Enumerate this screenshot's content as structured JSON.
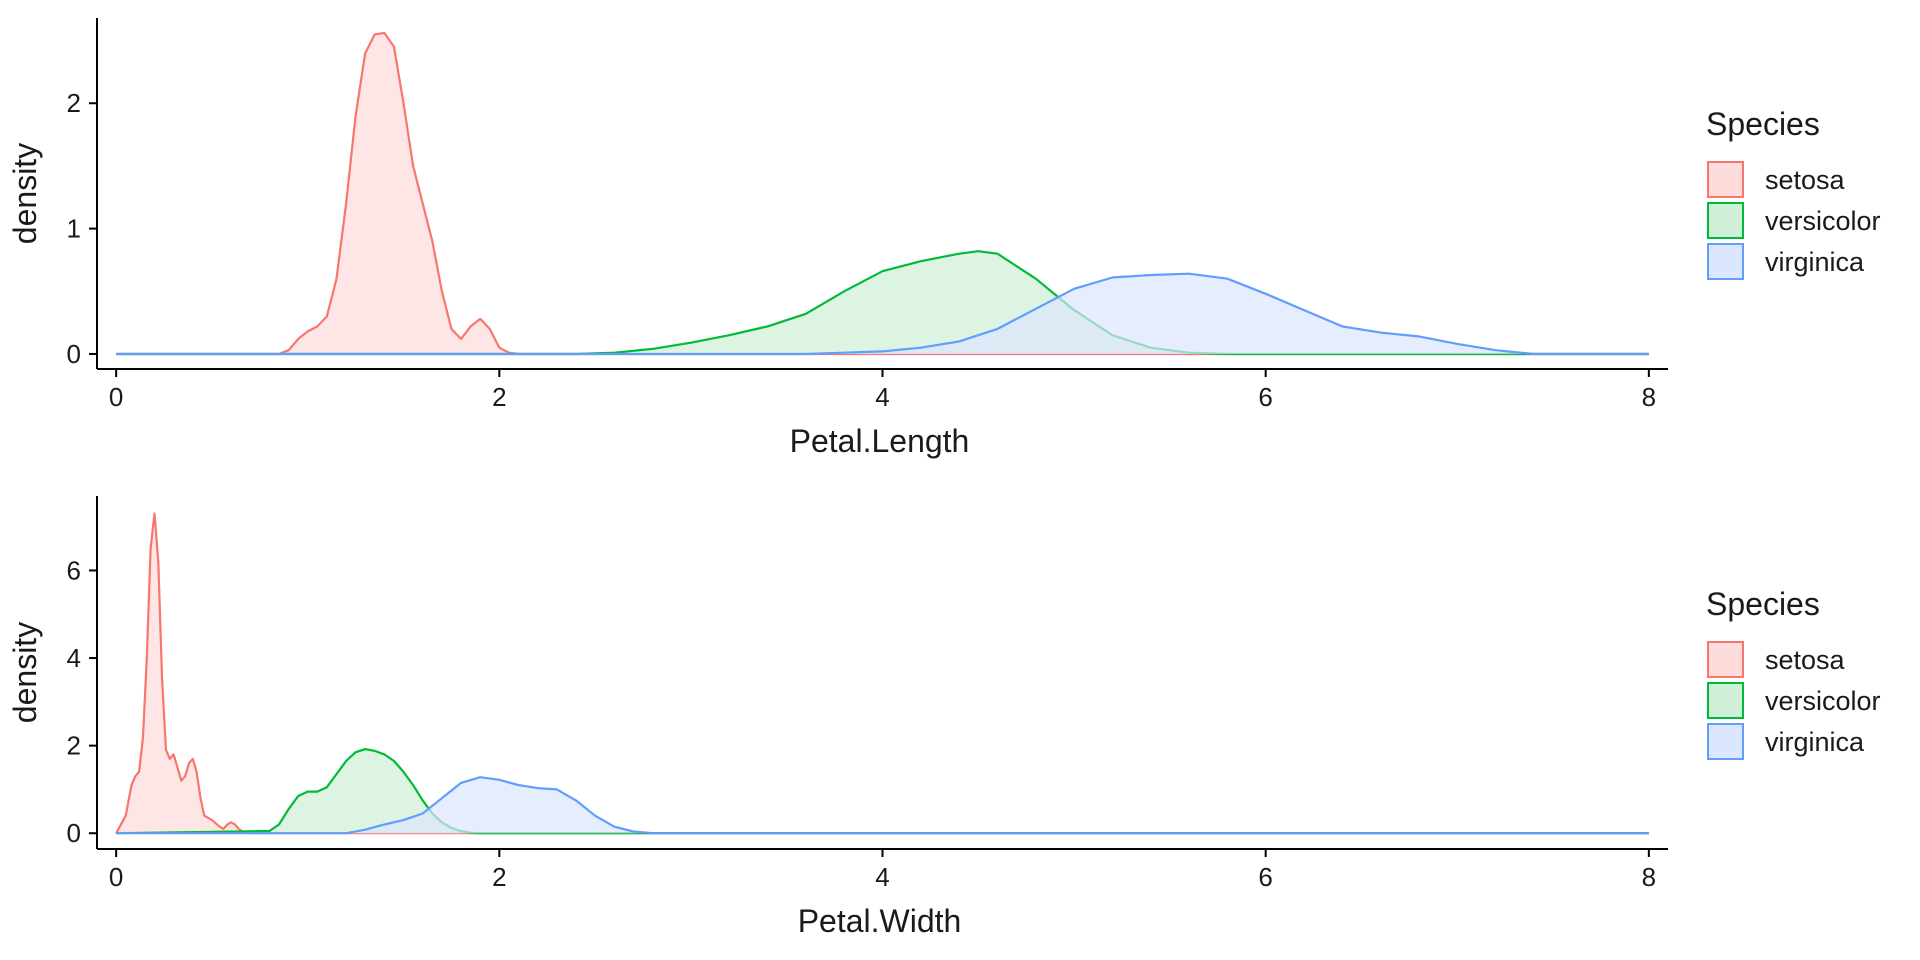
{
  "chart_data": [
    {
      "type": "area",
      "xlabel": "Petal.Length",
      "ylabel": "density",
      "xlim": [
        -0.1,
        8.1
      ],
      "ylim": [
        -0.12,
        2.68
      ],
      "xticks": [
        0,
        2,
        4,
        6,
        8
      ],
      "yticks": [
        0,
        1,
        2
      ],
      "grid": false,
      "legend": {
        "title": "Species",
        "position": "right"
      },
      "series": [
        {
          "name": "setosa",
          "color": "#F8766D",
          "fill": "#FDDCDB",
          "x": [
            0,
            0.85,
            0.9,
            0.95,
            1.0,
            1.05,
            1.1,
            1.15,
            1.2,
            1.25,
            1.3,
            1.35,
            1.4,
            1.45,
            1.5,
            1.55,
            1.6,
            1.65,
            1.7,
            1.75,
            1.8,
            1.85,
            1.9,
            1.95,
            2.0,
            2.05,
            2.1,
            8
          ],
          "y": [
            0,
            0,
            0.03,
            0.12,
            0.18,
            0.22,
            0.3,
            0.6,
            1.2,
            1.9,
            2.4,
            2.55,
            2.56,
            2.45,
            2.0,
            1.5,
            1.2,
            0.9,
            0.5,
            0.2,
            0.12,
            0.22,
            0.28,
            0.2,
            0.05,
            0.01,
            0,
            0
          ]
        },
        {
          "name": "versicolor",
          "color": "#00BA38",
          "fill": "#CFEFD6",
          "x": [
            0,
            2.4,
            2.6,
            2.8,
            3.0,
            3.2,
            3.4,
            3.6,
            3.8,
            4.0,
            4.2,
            4.4,
            4.5,
            4.6,
            4.8,
            5.0,
            5.2,
            5.4,
            5.6,
            5.8,
            6.0,
            8
          ],
          "y": [
            0,
            0,
            0.01,
            0.04,
            0.09,
            0.15,
            0.22,
            0.32,
            0.5,
            0.66,
            0.74,
            0.8,
            0.82,
            0.8,
            0.6,
            0.35,
            0.15,
            0.05,
            0.01,
            0,
            0,
            0
          ]
        },
        {
          "name": "virginica",
          "color": "#619CFF",
          "fill": "#DBE6FF",
          "x": [
            0,
            3.6,
            3.8,
            4.0,
            4.2,
            4.4,
            4.6,
            4.8,
            5.0,
            5.2,
            5.4,
            5.6,
            5.8,
            6.0,
            6.2,
            6.4,
            6.6,
            6.8,
            7.0,
            7.2,
            7.4,
            8
          ],
          "y": [
            0,
            0,
            0.01,
            0.02,
            0.05,
            0.1,
            0.2,
            0.36,
            0.52,
            0.61,
            0.63,
            0.64,
            0.6,
            0.48,
            0.35,
            0.22,
            0.17,
            0.14,
            0.08,
            0.03,
            0,
            0
          ]
        }
      ]
    },
    {
      "type": "area",
      "xlabel": "Petal.Width",
      "ylabel": "density",
      "xlim": [
        -0.1,
        8.1
      ],
      "ylim": [
        -0.36,
        7.7
      ],
      "xticks": [
        0,
        2,
        4,
        6,
        8
      ],
      "yticks": [
        0,
        2,
        4,
        6
      ],
      "grid": false,
      "legend": {
        "title": "Species",
        "position": "right"
      },
      "series": [
        {
          "name": "setosa",
          "color": "#F8766D",
          "fill": "#FDDCDB",
          "x": [
            0,
            0.05,
            0.08,
            0.1,
            0.12,
            0.14,
            0.16,
            0.18,
            0.2,
            0.22,
            0.24,
            0.26,
            0.28,
            0.3,
            0.32,
            0.34,
            0.36,
            0.38,
            0.4,
            0.42,
            0.44,
            0.46,
            0.5,
            0.54,
            0.56,
            0.58,
            0.6,
            0.62,
            0.64,
            0.66,
            0.7,
            8
          ],
          "y": [
            0,
            0.4,
            1.1,
            1.3,
            1.4,
            2.2,
            4.0,
            6.5,
            7.3,
            6.2,
            3.5,
            1.9,
            1.7,
            1.8,
            1.5,
            1.2,
            1.3,
            1.6,
            1.7,
            1.4,
            0.8,
            0.4,
            0.3,
            0.15,
            0.1,
            0.2,
            0.25,
            0.2,
            0.1,
            0.04,
            0,
            0
          ]
        },
        {
          "name": "versicolor",
          "color": "#00BA38",
          "fill": "#CFEFD6",
          "x": [
            0,
            0.8,
            0.85,
            0.9,
            0.95,
            1.0,
            1.05,
            1.1,
            1.15,
            1.2,
            1.25,
            1.3,
            1.35,
            1.4,
            1.45,
            1.5,
            1.55,
            1.6,
            1.65,
            1.7,
            1.75,
            1.8,
            1.85,
            1.9,
            8
          ],
          "y": [
            0,
            0.05,
            0.2,
            0.55,
            0.85,
            0.95,
            0.95,
            1.05,
            1.35,
            1.65,
            1.85,
            1.92,
            1.88,
            1.8,
            1.65,
            1.4,
            1.1,
            0.75,
            0.45,
            0.25,
            0.12,
            0.05,
            0.01,
            0,
            0
          ]
        },
        {
          "name": "virginica",
          "color": "#619CFF",
          "fill": "#DBE6FF",
          "x": [
            0,
            1.2,
            1.3,
            1.4,
            1.5,
            1.6,
            1.7,
            1.8,
            1.9,
            2.0,
            2.1,
            2.2,
            2.3,
            2.4,
            2.5,
            2.6,
            2.7,
            2.8,
            8
          ],
          "y": [
            0,
            0,
            0.08,
            0.2,
            0.3,
            0.45,
            0.8,
            1.15,
            1.28,
            1.22,
            1.1,
            1.03,
            1.0,
            0.75,
            0.4,
            0.15,
            0.04,
            0,
            0
          ]
        }
      ]
    }
  ]
}
